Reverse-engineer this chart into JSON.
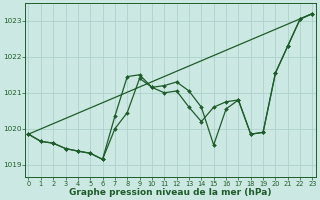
{
  "bg_color": "#cce8e2",
  "grid_color": "#a8cfc8",
  "line_color": "#1e5c2a",
  "xlabel": "Graphe pression niveau de la mer (hPa)",
  "xlabel_fontsize": 6.5,
  "xlim": [
    -0.3,
    23.3
  ],
  "ylim": [
    1018.65,
    1023.5
  ],
  "yticks": [
    1019,
    1020,
    1021,
    1022,
    1023
  ],
  "xticks": [
    0,
    1,
    2,
    3,
    4,
    5,
    6,
    7,
    8,
    9,
    10,
    11,
    12,
    13,
    14,
    15,
    16,
    17,
    18,
    19,
    20,
    21,
    22,
    23
  ],
  "line1_x": [
    0,
    23
  ],
  "line1_y": [
    1019.85,
    1023.2
  ],
  "line2_x": [
    0,
    1,
    2,
    3,
    4,
    5,
    6,
    7,
    8,
    9,
    10,
    11,
    12,
    13,
    14,
    15,
    16,
    17,
    18,
    19,
    20,
    21,
    22,
    23
  ],
  "line2_y": [
    1019.85,
    1019.65,
    1019.6,
    1019.45,
    1019.38,
    1019.32,
    1019.15,
    1020.35,
    1021.45,
    1021.5,
    1021.15,
    1021.2,
    1021.3,
    1021.05,
    1020.6,
    1019.55,
    1020.55,
    1020.8,
    1019.85,
    1019.9,
    1021.55,
    1022.3,
    1023.05,
    1023.2
  ],
  "line3_x": [
    0,
    1,
    2,
    3,
    4,
    5,
    6,
    7,
    8,
    9,
    10,
    11,
    12,
    13,
    14,
    15,
    16,
    17,
    18,
    19,
    20,
    21,
    22,
    23
  ],
  "line3_y": [
    1019.85,
    1019.65,
    1019.6,
    1019.45,
    1019.38,
    1019.32,
    1019.15,
    1020.0,
    1020.45,
    1021.4,
    1021.15,
    1021.0,
    1021.05,
    1020.6,
    1020.2,
    1020.6,
    1020.75,
    1020.8,
    1019.85,
    1019.9,
    1021.55,
    1022.3,
    1023.05,
    1023.2
  ]
}
